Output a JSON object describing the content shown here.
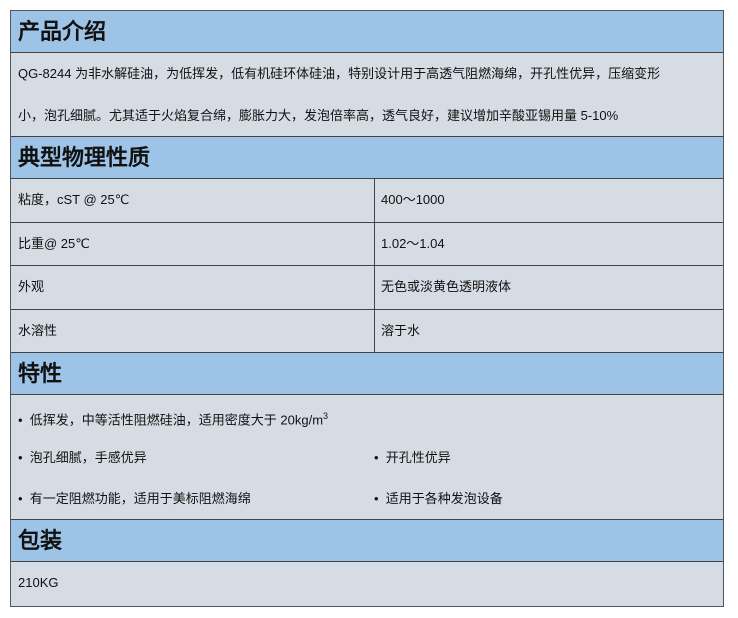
{
  "sections": {
    "intro": {
      "title": "产品介绍",
      "line1": "QG-8244 为非水解硅油，为低挥发，低有机硅环体硅油，特别设计用于高透气阻燃海绵，开孔性优异，压缩变形",
      "line2": "小，泡孔细腻。尤其适于火焰复合绵，膨胀力大，发泡倍率高，透气良好，建议增加辛酸亚锡用量 5-10%"
    },
    "properties": {
      "title": "典型物理性质",
      "rows": [
        {
          "name": "粘度，cST @ 25℃",
          "value": "400～1000"
        },
        {
          "name": "比重@ 25℃",
          "value": "1.02～1.04"
        },
        {
          "name": "外观",
          "value": "无色或淡黄色透明液体"
        },
        {
          "name": "水溶性",
          "value": "溶于水"
        }
      ]
    },
    "features": {
      "title": "特性",
      "bullet": "•",
      "item1": "低挥发，中等活性阻燃硅油，适用密度大于  20kg/m",
      "item1_sup": "3",
      "item2": "泡孔细腻，手感优异",
      "item3": "开孔性优异",
      "item4": "有一定阻燃功能，适用于美标阻燃海绵",
      "item5": "适用于各种发泡设备"
    },
    "packaging": {
      "title": "包装",
      "value": "210KG"
    }
  },
  "colors": {
    "header": "#9dc3e6",
    "body": "#d6dce4"
  }
}
